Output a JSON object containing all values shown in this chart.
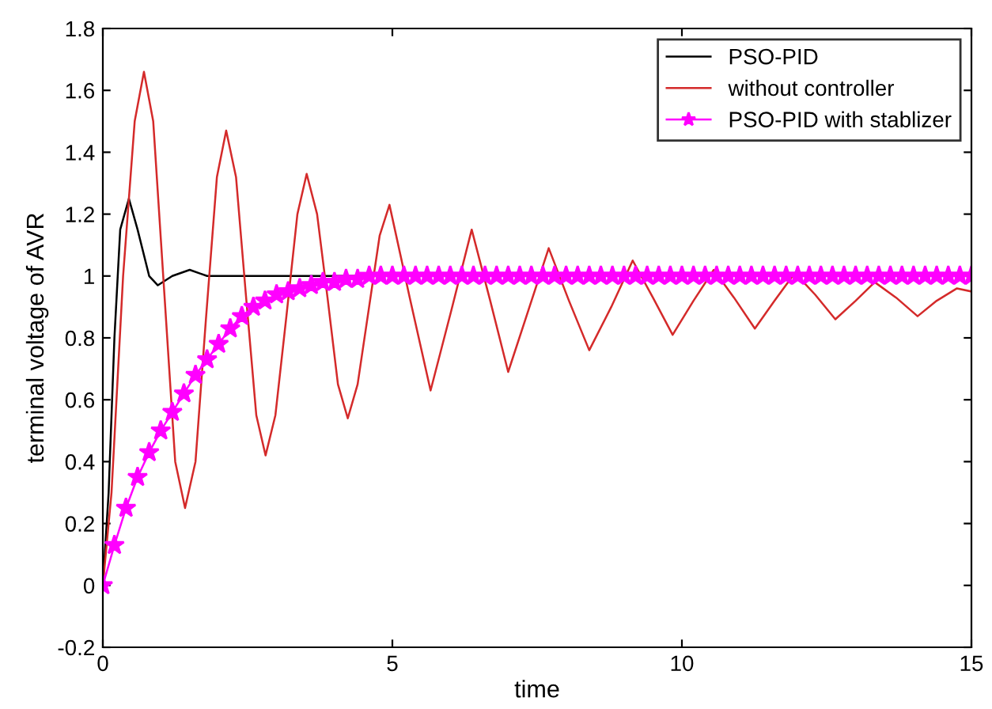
{
  "chart_data": {
    "type": "line",
    "xlabel": "time",
    "ylabel": "terminal voltage of AVR",
    "xlim": [
      0,
      15
    ],
    "ylim": [
      -0.2,
      1.8
    ],
    "xticks": [
      0,
      5,
      10,
      15
    ],
    "yticks": [
      -0.2,
      0,
      0.2,
      0.4,
      0.6,
      0.8,
      1,
      1.2,
      1.4,
      1.6,
      1.8
    ],
    "grid": false,
    "legend": "top right",
    "series": [
      {
        "name": "PSO-PID",
        "color": "#000000",
        "marker": "none",
        "x": [
          0,
          0.1,
          0.2,
          0.3,
          0.45,
          0.6,
          0.8,
          0.95,
          1.2,
          1.5,
          1.8,
          15
        ],
        "values": [
          0,
          0.3,
          0.8,
          1.15,
          1.25,
          1.15,
          1.0,
          0.97,
          1.0,
          1.02,
          1.0,
          1.0
        ]
      },
      {
        "name": "without controller",
        "color": "#d42a2a",
        "marker": "none",
        "x": [
          0,
          0.15,
          0.35,
          0.55,
          0.71,
          0.87,
          1.06,
          1.25,
          1.42,
          1.6,
          1.78,
          1.97,
          2.13,
          2.3,
          2.47,
          2.65,
          2.81,
          2.98,
          3.17,
          3.36,
          3.52,
          3.7,
          3.88,
          4.06,
          4.23,
          4.4,
          4.59,
          4.78,
          4.95,
          5.3,
          5.66,
          6.02,
          6.37,
          6.69,
          7.0,
          7.35,
          7.7,
          8.05,
          8.4,
          8.78,
          9.15,
          9.5,
          9.84,
          10.2,
          10.55,
          10.9,
          11.26,
          11.6,
          11.95,
          12.3,
          12.65,
          13.0,
          13.33,
          13.7,
          14.07,
          14.4,
          14.75,
          15
        ],
        "values": [
          0,
          0.3,
          1.0,
          1.5,
          1.66,
          1.5,
          0.95,
          0.4,
          0.25,
          0.4,
          0.86,
          1.32,
          1.47,
          1.32,
          0.94,
          0.55,
          0.42,
          0.55,
          0.87,
          1.2,
          1.33,
          1.2,
          0.93,
          0.65,
          0.54,
          0.65,
          0.89,
          1.13,
          1.23,
          0.93,
          0.63,
          0.89,
          1.15,
          0.92,
          0.69,
          0.89,
          1.09,
          0.92,
          0.76,
          0.9,
          1.05,
          0.93,
          0.81,
          0.92,
          1.02,
          0.93,
          0.83,
          0.92,
          1.01,
          0.94,
          0.86,
          0.92,
          0.98,
          0.93,
          0.87,
          0.92,
          0.96,
          0.95
        ]
      },
      {
        "name": "PSO-PID with stablizer",
        "color": "#ff00ff",
        "marker": "star",
        "x": [
          0,
          0.2,
          0.4,
          0.6,
          0.8,
          1.0,
          1.2,
          1.4,
          1.6,
          1.8,
          2.0,
          2.2,
          2.4,
          2.6,
          2.8,
          3.0,
          3.2,
          3.4,
          3.6,
          3.8,
          4.0,
          4.2,
          4.4,
          4.6,
          4.8,
          5.0,
          5.2,
          5.4,
          5.6,
          5.8,
          6.0,
          6.2,
          6.4,
          6.6,
          6.8,
          7.0,
          7.2,
          7.4,
          7.6,
          7.8,
          8.0,
          8.2,
          8.4,
          8.6,
          8.8,
          9.0,
          9.2,
          9.4,
          9.6,
          9.8,
          10.0,
          10.2,
          10.4,
          10.6,
          10.8,
          11.0,
          11.2,
          11.4,
          11.6,
          11.8,
          12.0,
          12.2,
          12.4,
          12.6,
          12.8,
          13.0,
          13.2,
          13.4,
          13.6,
          13.8,
          14.0,
          14.2,
          14.4,
          14.6,
          14.8,
          15.0
        ],
        "values": [
          0,
          0.13,
          0.25,
          0.35,
          0.43,
          0.5,
          0.56,
          0.62,
          0.68,
          0.73,
          0.78,
          0.83,
          0.87,
          0.9,
          0.92,
          0.94,
          0.95,
          0.96,
          0.97,
          0.98,
          0.98,
          0.99,
          0.99,
          1.0,
          1.0,
          1.0,
          1.0,
          1.0,
          1.0,
          1.0,
          1.0,
          1.0,
          1.0,
          1.0,
          1.0,
          1.0,
          1.0,
          1.0,
          1.0,
          1.0,
          1.0,
          1.0,
          1.0,
          1.0,
          1.0,
          1.0,
          1.0,
          1.0,
          1.0,
          1.0,
          1.0,
          1.0,
          1.0,
          1.0,
          1.0,
          1.0,
          1.0,
          1.0,
          1.0,
          1.0,
          1.0,
          1.0,
          1.0,
          1.0,
          1.0,
          1.0,
          1.0,
          1.0,
          1.0,
          1.0,
          1.0,
          1.0,
          1.0,
          1.0,
          1.0,
          1.0
        ]
      }
    ]
  }
}
